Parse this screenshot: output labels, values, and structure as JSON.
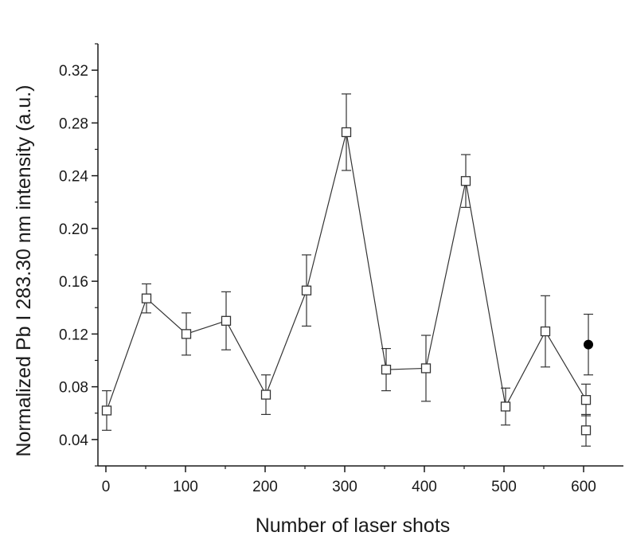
{
  "chart_data": {
    "type": "scatter",
    "title": "",
    "xlabel": "Number of laser shots",
    "ylabel": "Normalized Pb I 283.30 nm intensity (a.u.)",
    "xlim": [
      -10,
      650
    ],
    "ylim": [
      0.02,
      0.34
    ],
    "xticks": [
      0,
      100,
      200,
      300,
      400,
      500,
      600
    ],
    "yticks": [
      0.04,
      0.08,
      0.12,
      0.16,
      0.2,
      0.24,
      0.28,
      0.32
    ],
    "xtick_labels": [
      "0",
      "100",
      "200",
      "300",
      "400",
      "500",
      "600"
    ],
    "ytick_labels": [
      "0.04",
      "0.08",
      "0.12",
      "0.16",
      "0.20",
      "0.24",
      "0.28",
      "0.32"
    ],
    "grid": false,
    "legend": "none",
    "series": [
      {
        "marker": "open-square",
        "connected": true,
        "color": "#333333",
        "x": [
          1,
          51,
          101,
          151,
          201,
          252,
          302,
          352,
          402,
          452,
          502,
          552,
          603
        ],
        "y": [
          0.062,
          0.147,
          0.12,
          0.13,
          0.074,
          0.153,
          0.273,
          0.093,
          0.094,
          0.236,
          0.065,
          0.122,
          0.07
        ],
        "err": [
          0.015,
          0.011,
          0.016,
          0.022,
          0.015,
          0.027,
          0.029,
          0.016,
          0.025,
          0.02,
          0.014,
          0.027,
          0.012
        ]
      },
      {
        "marker": "open-square",
        "connected": false,
        "color": "#333333",
        "x": [
          603
        ],
        "y": [
          0.047
        ],
        "err": [
          0.012
        ]
      },
      {
        "marker": "filled-circle",
        "connected": false,
        "color": "#000000",
        "x": [
          606
        ],
        "y": [
          0.112
        ],
        "err": [
          0.023
        ]
      }
    ]
  }
}
